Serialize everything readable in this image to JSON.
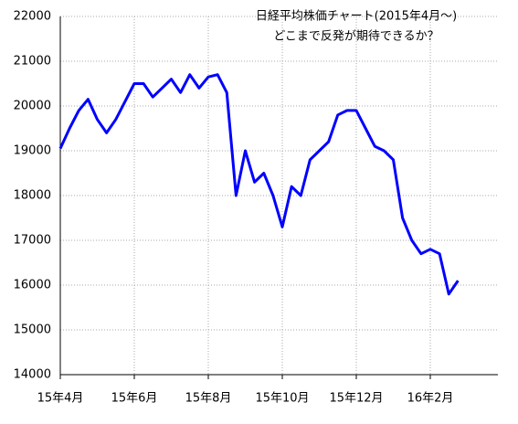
{
  "chart_data": {
    "type": "line",
    "title": [
      "日経平均株価チャート(2015年4月～)",
      "どこまで反発が期待できるか？"
    ],
    "categories": [
      "15年4月",
      null,
      null,
      null,
      null,
      null,
      null,
      null,
      "15年6月",
      null,
      null,
      null,
      null,
      null,
      null,
      null,
      "15年8月",
      null,
      null,
      null,
      null,
      null,
      null,
      null,
      "15年10月",
      null,
      null,
      null,
      null,
      null,
      null,
      null,
      "15年12月",
      null,
      null,
      null,
      null,
      null,
      null,
      null,
      "16年2月",
      null,
      null,
      null
    ],
    "series": [
      {
        "name": "日経平均株価",
        "color": "#0000ff",
        "values": [
          19050,
          19500,
          19900,
          20150,
          19700,
          19400,
          19700,
          20100,
          20500,
          20500,
          20200,
          20400,
          20600,
          20300,
          20700,
          20400,
          20650,
          20700,
          20300,
          18000,
          19000,
          18300,
          18500,
          18000,
          17300,
          18200,
          18000,
          18800,
          19000,
          19200,
          19800,
          19900,
          19900,
          19500,
          19100,
          19000,
          18800,
          17500,
          17000,
          16700,
          16800,
          16700,
          15800,
          16100
        ]
      }
    ],
    "ylim": [
      14000,
      22000
    ],
    "yticks": [
      14000,
      15000,
      16000,
      17000,
      18000,
      19000,
      20000,
      21000,
      22000
    ],
    "grid": true
  }
}
